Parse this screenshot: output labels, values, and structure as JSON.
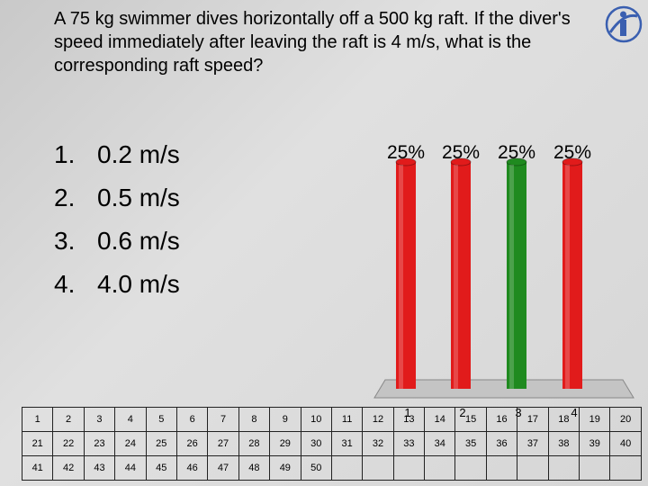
{
  "question": "A 75 kg swimmer dives horizontally off a 500 kg raft. If the diver's speed immediately after leaving the raft is 4 m/s, what is the corresponding raft speed?",
  "answers": [
    {
      "number": "1.",
      "text": "0.2 m/s"
    },
    {
      "number": "2.",
      "text": "0.5 m/s"
    },
    {
      "number": "3.",
      "text": "0.6 m/s"
    },
    {
      "number": "4.",
      "text": "4.0 m/s"
    }
  ],
  "colors": {
    "bar_red": "#e11b1b",
    "bar_green": "#1f8a1f",
    "floor": "#c4c4c4"
  },
  "chart_data": {
    "type": "bar",
    "categories": [
      "1",
      "2",
      "3",
      "4"
    ],
    "values": [
      25,
      25,
      25,
      25
    ],
    "value_labels": [
      "25%",
      "25%",
      "25%",
      "25%"
    ],
    "bar_colors": [
      "#e11b1b",
      "#e11b1b",
      "#1f8a1f",
      "#e11b1b"
    ],
    "ylim": [
      0,
      25
    ]
  },
  "grid_rows": [
    [
      "1",
      "2",
      "3",
      "4",
      "5",
      "6",
      "7",
      "8",
      "9",
      "10",
      "11",
      "12",
      "13",
      "14",
      "15",
      "16",
      "17",
      "18",
      "19",
      "20"
    ],
    [
      "21",
      "22",
      "23",
      "24",
      "25",
      "26",
      "27",
      "28",
      "29",
      "30",
      "31",
      "32",
      "33",
      "34",
      "35",
      "36",
      "37",
      "38",
      "39",
      "40"
    ],
    [
      "41",
      "42",
      "43",
      "44",
      "45",
      "46",
      "47",
      "48",
      "49",
      "50",
      "",
      "",
      "",
      "",
      "",
      "",
      "",
      "",
      "",
      ""
    ]
  ]
}
